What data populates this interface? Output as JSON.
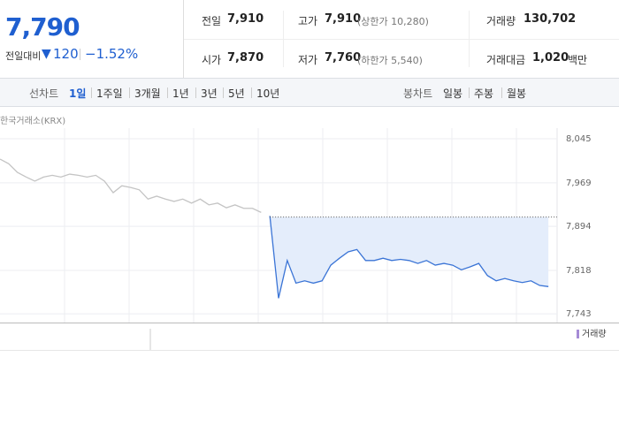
{
  "quote": {
    "price": "7,790",
    "change_label": "전일대비",
    "change": "120",
    "change_rate": "−1.52%"
  },
  "stats": [
    {
      "label": "전일",
      "value": "7,910"
    },
    {
      "label": "고가",
      "value": "7,910",
      "note": "(상한가 10,280)"
    },
    {
      "label": "거래량",
      "value": "130,702"
    },
    {
      "label": "시가",
      "value": "7,870"
    },
    {
      "label": "저가",
      "value": "7,760",
      "note": "(하한가 5,540)"
    },
    {
      "label": "거래대금",
      "value": "1,020",
      "unit": "백만"
    }
  ],
  "tabs": {
    "line_label": "선차트",
    "line": [
      "1일",
      "1주일",
      "3개월",
      "1년",
      "3년",
      "5년",
      "10년"
    ],
    "candle_label": "봉차트",
    "candle": [
      "일봉",
      "주봉",
      "월봉"
    ]
  },
  "chart_data": {
    "type": "line",
    "source": "한국거래소(KRX)",
    "volume_label": "거래량",
    "categories": [
      null,
      null,
      null,
      null,
      null,
      null,
      null,
      null,
      null,
      null,
      null,
      null,
      null,
      null,
      null,
      null,
      null,
      null,
      null,
      null,
      null,
      null,
      null,
      null,
      null,
      null,
      null,
      null,
      null,
      null,
      null,
      null,
      null,
      null,
      null,
      null,
      null,
      null,
      null,
      null,
      null,
      null,
      null,
      null,
      null,
      null,
      null,
      null,
      null,
      null,
      null,
      null,
      null,
      null,
      null,
      null,
      null,
      null,
      null,
      null,
      null,
      null,
      null,
      null
    ],
    "series": [
      {
        "color": "#c4c4c4",
        "values": [
          8010,
          8002,
          7987,
          7979,
          7972,
          7979,
          7982,
          7979,
          7984,
          7982,
          7979,
          7982,
          7972,
          7952,
          7964,
          7961,
          7957,
          7941,
          7946,
          7941,
          7937,
          7941,
          7934,
          7941,
          7931,
          7934,
          7926,
          7931,
          7925,
          7925,
          7918,
          null,
          null,
          null,
          null,
          null,
          null,
          null,
          null,
          null,
          null,
          null,
          null,
          null,
          null,
          null,
          null,
          null,
          null,
          null,
          null,
          null,
          null,
          null,
          null,
          null,
          null,
          null,
          null,
          null,
          null,
          null,
          null,
          null
        ]
      },
      {
        "color": "#3a74d6",
        "area_color": "#e4edfb",
        "values": [
          null,
          null,
          null,
          null,
          null,
          null,
          null,
          null,
          null,
          null,
          null,
          null,
          null,
          null,
          null,
          null,
          null,
          null,
          null,
          null,
          null,
          null,
          null,
          null,
          null,
          null,
          null,
          null,
          null,
          null,
          null,
          7912,
          7770,
          7835,
          7796,
          7800,
          7796,
          7800,
          7827,
          7839,
          7850,
          7854,
          7835,
          7835,
          7839,
          7835,
          7837,
          7835,
          7830,
          7835,
          7827,
          7830,
          7827,
          7819,
          7824,
          7830,
          7809,
          7800,
          7804,
          7800,
          7797,
          7800,
          7792,
          7790
        ]
      }
    ],
    "baseline": 7910,
    "ylim": [
      7728,
      8071
    ],
    "yticks": [
      {
        "value": 8045,
        "label": "8,045"
      },
      {
        "value": 7969,
        "label": "7,969"
      },
      {
        "value": 7894,
        "label": "7,894"
      },
      {
        "value": 7818,
        "label": "7,818"
      },
      {
        "value": 7743,
        "label": "7,743"
      }
    ],
    "grid": true
  }
}
